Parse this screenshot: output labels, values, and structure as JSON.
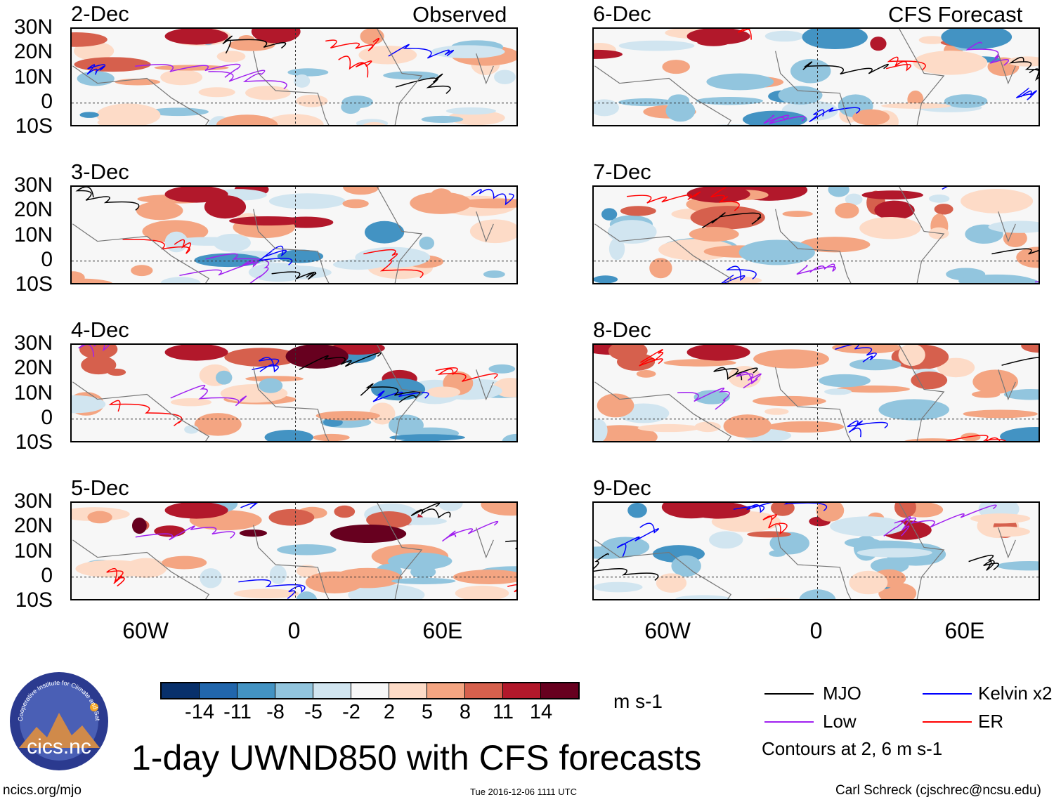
{
  "headers": {
    "left": "Observed",
    "right": "CFS Forecast"
  },
  "panels": [
    {
      "date": "2-Dec",
      "column": "left",
      "row": 0
    },
    {
      "date": "3-Dec",
      "column": "left",
      "row": 1
    },
    {
      "date": "4-Dec",
      "column": "left",
      "row": 2
    },
    {
      "date": "5-Dec",
      "column": "left",
      "row": 3
    },
    {
      "date": "6-Dec",
      "column": "right",
      "row": 0
    },
    {
      "date": "7-Dec",
      "column": "right",
      "row": 1
    },
    {
      "date": "8-Dec",
      "column": "right",
      "row": 2
    },
    {
      "date": "9-Dec",
      "column": "right",
      "row": 3
    }
  ],
  "lat_labels": [
    "30N",
    "20N",
    "10N",
    "0",
    "10S"
  ],
  "lon_labels": [
    "60W",
    "0",
    "60E"
  ],
  "colorbar": {
    "colors": [
      "#08306b",
      "#2166ac",
      "#4393c3",
      "#92c5de",
      "#d1e5f0",
      "#f7f7f7",
      "#fddbc7",
      "#f4a582",
      "#d6604d",
      "#b2182b",
      "#67001f"
    ],
    "labels": [
      "-14",
      "-11",
      "-8",
      "-5",
      "-2",
      "2",
      "5",
      "8",
      "11",
      "14"
    ],
    "units": "m s-1"
  },
  "legend": {
    "items": [
      {
        "label": "MJO",
        "color": "#000000"
      },
      {
        "label": "Kelvin x2",
        "color": "#0000ff"
      },
      {
        "label": "Low",
        "color": "#a020f0"
      },
      {
        "label": "ER",
        "color": "#ff0000"
      }
    ],
    "note": "Contours at 2, 6 m s-1"
  },
  "title": "1-day UWND850 with CFS forecasts",
  "logo": {
    "text": "cics.nc",
    "ring_text": "Cooperative Institute for Climate and Satellites"
  },
  "footer": {
    "left": "ncics.org/mjo",
    "center": "Tue 2016-12-06 1111 UTC",
    "right": "Carl Schreck (cjschrec@ncsu.edu)"
  }
}
